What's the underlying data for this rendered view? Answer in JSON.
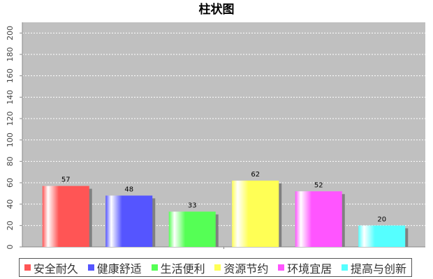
{
  "chart_data": {
    "type": "bar",
    "title": "柱状图",
    "categories": [
      null
    ],
    "series": [
      {
        "name": "安全耐久",
        "color": "#ff5555",
        "values": [
          57
        ]
      },
      {
        "name": "健康舒适",
        "color": "#5555ff",
        "values": [
          48
        ]
      },
      {
        "name": "生活便利",
        "color": "#55ff55",
        "values": [
          33
        ]
      },
      {
        "name": "资源节约",
        "color": "#ffff55",
        "values": [
          62
        ]
      },
      {
        "name": "环境宜居",
        "color": "#ff55ff",
        "values": [
          52
        ]
      },
      {
        "name": "提高与创新",
        "color": "#55ffff",
        "values": [
          20
        ]
      }
    ],
    "ylim": [
      0,
      210
    ],
    "yticks": [
      0,
      20,
      40,
      60,
      80,
      100,
      120,
      140,
      160,
      180,
      200
    ],
    "grid": true
  }
}
